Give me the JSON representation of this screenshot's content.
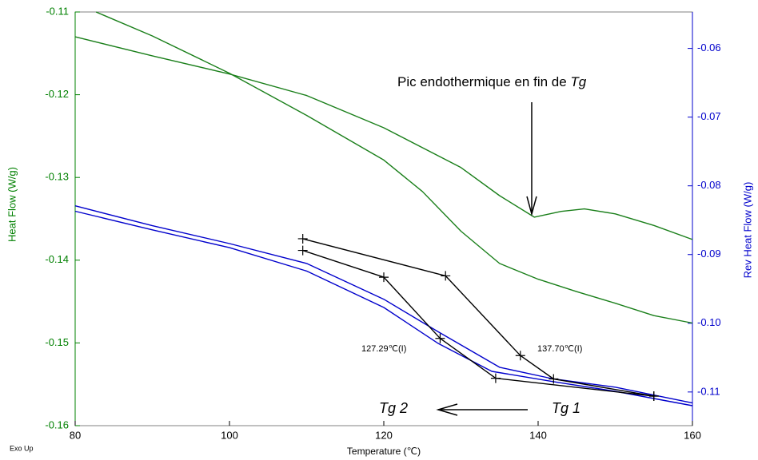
{
  "chart_data": {
    "type": "line",
    "x_label": "Temperature (℃)",
    "y_label": "Heat Flow (W/g)",
    "y2_label": "Rev Heat Flow (W/g)",
    "corner_note": "Exo Up",
    "xlim": [
      80,
      160
    ],
    "xticks": [
      80,
      100,
      120,
      140,
      160
    ],
    "ylim": [
      -0.16,
      -0.11
    ],
    "yticks": [
      -0.11,
      -0.12,
      -0.13,
      -0.14,
      -0.15,
      -0.16
    ],
    "y2lim": [
      -0.1149,
      -0.0547
    ],
    "y2ticks": [
      -0.06,
      -0.07,
      -0.08,
      -0.09,
      {
        "value": -0.1,
        "label": "-0.10"
      },
      -0.11
    ],
    "y_color": "#008000",
    "y2_color": "#0000cc",
    "series": [
      {
        "color": "#1a7f1a",
        "x": [
          80,
          90,
          100,
          110,
          120,
          130,
          135,
          139.5,
          143,
          146,
          150,
          155,
          160
        ],
        "values": [
          -0.113,
          -0.1153,
          -0.1175,
          -0.1201,
          -0.124,
          -0.1288,
          -0.1322,
          -0.1348,
          -0.1341,
          -0.1338,
          -0.1344,
          -0.1358,
          -0.1375
        ]
      },
      {
        "color": "#1a7f1a",
        "x": [
          82.7,
          90,
          100,
          110,
          120,
          125,
          130,
          135,
          140,
          145,
          150,
          155,
          160
        ],
        "values": [
          -0.11,
          -0.1129,
          -0.1174,
          -0.1225,
          -0.1279,
          -0.1317,
          -0.1365,
          -0.1404,
          -0.1423,
          -0.1438,
          -0.1452,
          -0.1467,
          -0.1476
        ]
      },
      {
        "color": "#0000cc",
        "axis": "y2",
        "x": [
          80,
          90,
          100,
          110,
          120,
          127,
          135,
          142,
          150,
          160
        ],
        "values": [
          -0.0829,
          -0.0858,
          -0.0884,
          -0.0913,
          -0.0965,
          -0.1012,
          -0.1064,
          -0.1081,
          -0.1093,
          -0.1116
        ]
      },
      {
        "color": "#0000cc",
        "axis": "y2",
        "x": [
          80,
          90,
          100,
          110,
          120,
          127,
          134,
          142,
          150,
          160
        ],
        "values": [
          -0.0837,
          -0.0864,
          -0.089,
          -0.0924,
          -0.0977,
          -0.1029,
          -0.107,
          -0.1085,
          -0.1099,
          -0.112
        ]
      },
      {
        "color": "#000000",
        "axis": "y2",
        "markers": true,
        "x": [
          109.5,
          128,
          137.7,
          142,
          155
        ],
        "values": [
          -0.0877,
          -0.0931,
          -0.1047,
          -0.1081,
          -0.1106
        ]
      },
      {
        "color": "#000000",
        "axis": "y2",
        "markers": true,
        "x": [
          109.5,
          120,
          127.3,
          134.5,
          155
        ],
        "values": [
          -0.0894,
          -0.0933,
          -0.1022,
          -0.108,
          -0.1106
        ]
      }
    ],
    "annotations": [
      "Pic endothermique en fin de ",
      "Tg",
      "127.29℃(I)",
      "137.70℃(I)",
      "Tg 2",
      "Tg 1"
    ]
  }
}
